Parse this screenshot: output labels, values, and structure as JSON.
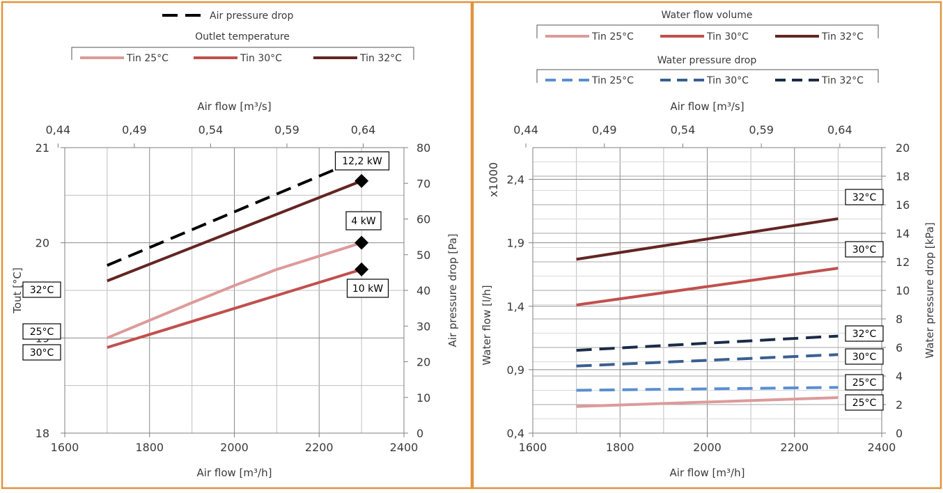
{
  "colors": {
    "border": "#e3933c",
    "grid": "#bfbfbf",
    "tin25": "#dd9a9a",
    "tin30": "#c0504d",
    "tin32": "#632523",
    "wp25": "#5b8ed1",
    "wp30": "#3a5f91",
    "wp32": "#1b2b48",
    "airdrop": "#000000"
  },
  "chart_data": [
    {
      "type": "line",
      "legend": {
        "air_drop": "Air pressure drop",
        "group_title": "Outlet temperature",
        "entries": [
          "Tin 25°C",
          "Tin 30°C",
          "Tin 32°C"
        ]
      },
      "xlabel": "Air flow [m³/h]",
      "xlim": [
        1600,
        2400
      ],
      "xticks": [
        "1600",
        "1800",
        "2000",
        "2200",
        "2400"
      ],
      "x2label": "Air flow [m³/s]",
      "x2lim": [
        0.4444,
        0.6667
      ],
      "x2ticks": [
        "0,44",
        "0,49",
        "0,54",
        "0,59",
        "0,64"
      ],
      "ylabel": "Tout [°C]",
      "ylim": [
        18,
        21
      ],
      "yticks": [
        "18",
        "19",
        "20",
        "21"
      ],
      "y2label": "Air pressure drop [Pa]",
      "y2lim": [
        0,
        80
      ],
      "y2ticks": [
        "0",
        "10",
        "20",
        "30",
        "40",
        "50",
        "60",
        "70",
        "80"
      ],
      "x": [
        1700,
        2300
      ],
      "series": [
        {
          "name": "Tin 25°C",
          "axis": "y",
          "values": [
            19.0,
            20.0
          ],
          "curve": [
            19.0,
            19.37,
            19.55,
            19.72,
            20.0
          ]
        },
        {
          "name": "Tin 30°C",
          "axis": "y",
          "values": [
            18.9,
            19.72
          ]
        },
        {
          "name": "Tin 32°C",
          "axis": "y",
          "values": [
            19.6,
            20.65
          ]
        },
        {
          "name": "Air pressure drop",
          "axis": "y2",
          "values": [
            47,
            77
          ]
        }
      ],
      "markers": [
        {
          "x": 2300,
          "y": 20.65,
          "label": "12,2 kW"
        },
        {
          "x": 2300,
          "y": 20.0,
          "label": "4 kW"
        },
        {
          "x": 2300,
          "y": 19.72,
          "label": "10 kW"
        }
      ],
      "end_labels": [
        "32°C",
        "25°C",
        "30°C"
      ]
    },
    {
      "type": "line",
      "legend": {
        "flow_title": "Water flow volume",
        "flow_entries": [
          "Tin 25°C",
          "Tin 30°C",
          "Tin 32°C"
        ],
        "drop_title": "Water pressure drop",
        "drop_entries": [
          "Tin 25°C",
          "Tin 30°C",
          "Tin 32°C"
        ]
      },
      "xlabel": "Air flow [m³/h]",
      "xlim": [
        1600,
        2400
      ],
      "xticks": [
        "1600",
        "1800",
        "2000",
        "2200",
        "2400"
      ],
      "x2label": "Air flow [m³/s]",
      "x2lim": [
        0.4444,
        0.6667
      ],
      "x2ticks": [
        "0,44",
        "0,49",
        "0,54",
        "0,59",
        "0,64"
      ],
      "ylabel": "Water flow [l/h]",
      "yunit": "x1000",
      "ylim": [
        0.4,
        2.65
      ],
      "yticks": [
        "0,4",
        "0,9",
        "1,4",
        "1,9",
        "2,4"
      ],
      "y2label": "Water pressure drop [kPa]",
      "y2lim": [
        0,
        20
      ],
      "y2ticks": [
        "0",
        "2",
        "4",
        "6",
        "8",
        "10",
        "12",
        "14",
        "16",
        "18",
        "20"
      ],
      "x": [
        1700,
        2300
      ],
      "series": [
        {
          "name": "Tin 25°C",
          "kind": "flow",
          "axis": "y",
          "values": [
            0.61,
            0.68
          ]
        },
        {
          "name": "Tin 30°C",
          "kind": "flow",
          "axis": "y",
          "values": [
            1.41,
            1.7
          ]
        },
        {
          "name": "Tin 32°C",
          "kind": "flow",
          "axis": "y",
          "values": [
            1.77,
            2.09
          ]
        },
        {
          "name": "Tin 25°C",
          "kind": "pressure",
          "axis": "y2",
          "values": [
            3.0,
            3.2
          ]
        },
        {
          "name": "Tin 30°C",
          "kind": "pressure",
          "axis": "y2",
          "values": [
            4.7,
            5.5
          ]
        },
        {
          "name": "Tin 32°C",
          "kind": "pressure",
          "axis": "y2",
          "values": [
            5.8,
            6.8
          ]
        }
      ],
      "end_labels": [
        "32°C",
        "30°C",
        "32°C",
        "30°C",
        "25°C",
        "25°C"
      ]
    }
  ]
}
